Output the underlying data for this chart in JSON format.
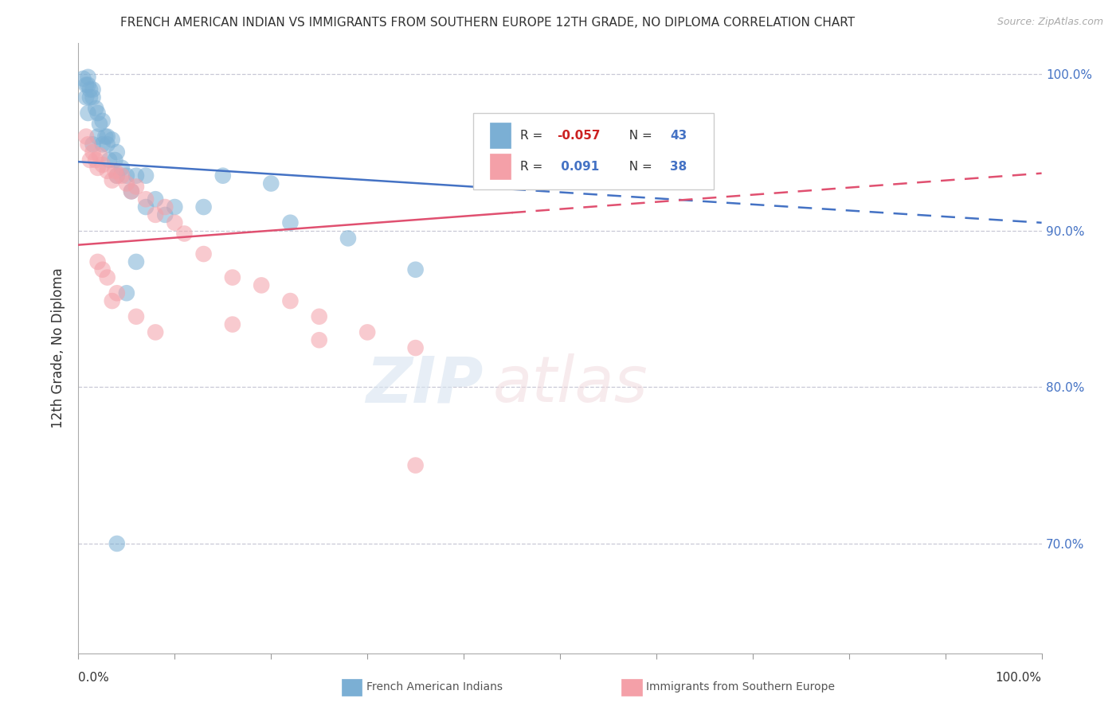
{
  "title": "FRENCH AMERICAN INDIAN VS IMMIGRANTS FROM SOUTHERN EUROPE 12TH GRADE, NO DIPLOMA CORRELATION CHART",
  "source": "Source: ZipAtlas.com",
  "ylabel": "12th Grade, No Diploma",
  "y_tick_labels": [
    "70.0%",
    "80.0%",
    "90.0%",
    "100.0%"
  ],
  "y_tick_values": [
    0.7,
    0.8,
    0.9,
    1.0
  ],
  "x_tick_values": [
    0.0,
    0.1,
    0.2,
    0.3,
    0.4,
    0.5,
    0.6,
    0.7,
    0.8,
    0.9,
    1.0
  ],
  "blue_color": "#7BAFD4",
  "pink_color": "#F4A0A8",
  "trend_blue_color": "#4472C4",
  "trend_pink_color": "#E05070",
  "background": "#FFFFFF",
  "grid_color": "#BBBBCC",
  "legend_label_blue": "French American Indians",
  "legend_label_pink": "Immigrants from Southern Europe",
  "blue_R": -0.057,
  "blue_N": 43,
  "pink_R": 0.091,
  "pink_N": 38,
  "xlim": [
    0.0,
    1.0
  ],
  "ylim": [
    0.63,
    1.02
  ],
  "blue_x": [
    0.005,
    0.008,
    0.01,
    0.01,
    0.012,
    0.012,
    0.015,
    0.015,
    0.018,
    0.02,
    0.022,
    0.025,
    0.028,
    0.03,
    0.032,
    0.035,
    0.038,
    0.04,
    0.045,
    0.05,
    0.055,
    0.06,
    0.07,
    0.08,
    0.09,
    0.1,
    0.13,
    0.22,
    0.28,
    0.35,
    0.2,
    0.15,
    0.07,
    0.04,
    0.025,
    0.03,
    0.02,
    0.015,
    0.01,
    0.008,
    0.06,
    0.04,
    0.05
  ],
  "blue_y": [
    0.997,
    0.993,
    0.998,
    0.993,
    0.99,
    0.985,
    0.99,
    0.985,
    0.978,
    0.975,
    0.968,
    0.955,
    0.96,
    0.955,
    0.945,
    0.958,
    0.945,
    0.95,
    0.94,
    0.935,
    0.925,
    0.935,
    0.915,
    0.92,
    0.91,
    0.915,
    0.915,
    0.905,
    0.895,
    0.875,
    0.93,
    0.935,
    0.935,
    0.935,
    0.97,
    0.96,
    0.96,
    0.955,
    0.975,
    0.985,
    0.88,
    0.7,
    0.86
  ],
  "pink_x": [
    0.008,
    0.01,
    0.012,
    0.015,
    0.018,
    0.02,
    0.022,
    0.025,
    0.03,
    0.035,
    0.038,
    0.04,
    0.045,
    0.05,
    0.055,
    0.06,
    0.07,
    0.08,
    0.09,
    0.1,
    0.11,
    0.13,
    0.16,
    0.19,
    0.22,
    0.25,
    0.3,
    0.35,
    0.02,
    0.025,
    0.03,
    0.035,
    0.04,
    0.06,
    0.08,
    0.16,
    0.25,
    0.35
  ],
  "pink_y": [
    0.96,
    0.955,
    0.945,
    0.95,
    0.945,
    0.94,
    0.948,
    0.942,
    0.938,
    0.932,
    0.938,
    0.935,
    0.935,
    0.93,
    0.925,
    0.928,
    0.92,
    0.91,
    0.915,
    0.905,
    0.898,
    0.885,
    0.87,
    0.865,
    0.855,
    0.845,
    0.835,
    0.825,
    0.88,
    0.875,
    0.87,
    0.855,
    0.86,
    0.845,
    0.835,
    0.84,
    0.83,
    0.75
  ]
}
